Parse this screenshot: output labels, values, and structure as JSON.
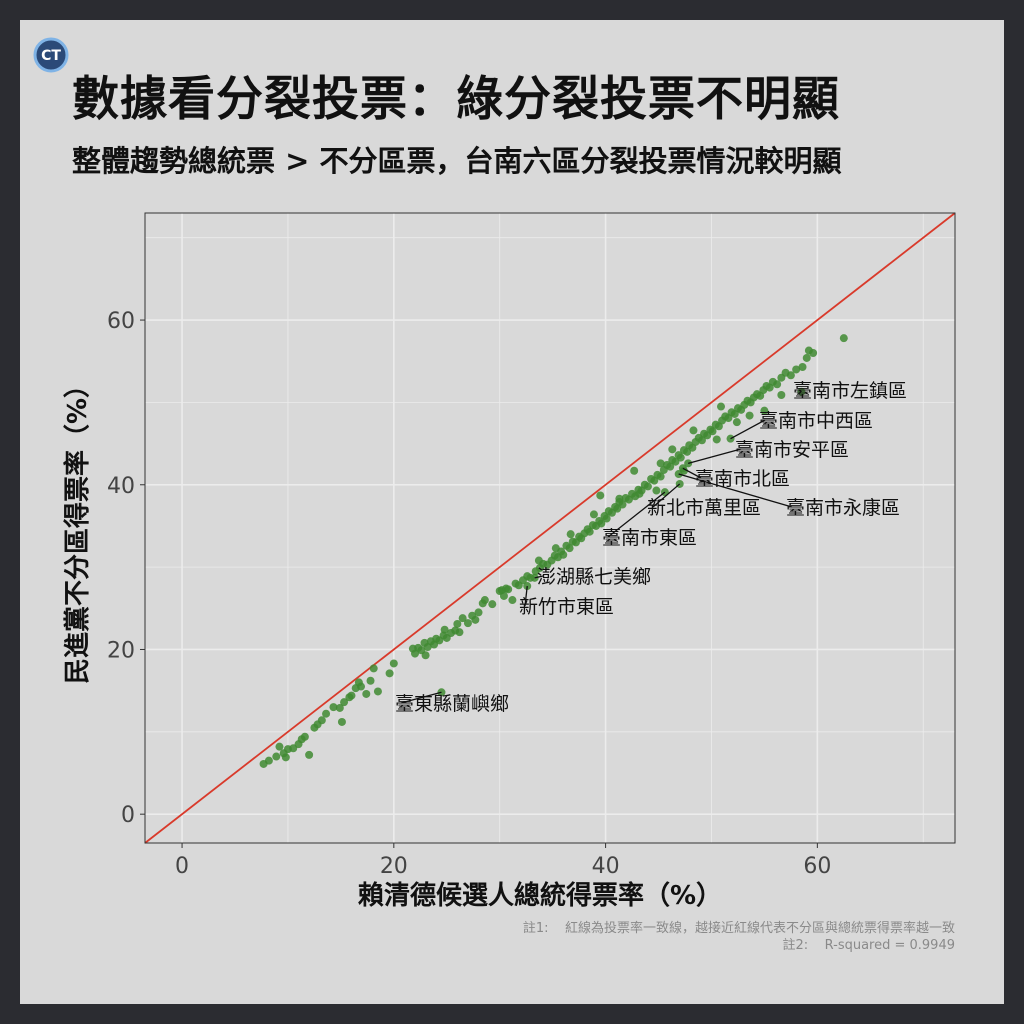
{
  "title": "數據看分裂投票：綠分裂投票不明顯",
  "subtitle": "整體趨勢總統票 > 不分區票，台南六區分裂投票情況較明顯",
  "logo_text": "CT",
  "notes": [
    "註1:    紅線為投票率一致線，越接近紅線代表不分區與總統票得票率越一致",
    "註2:    R-squared = 0.9949"
  ],
  "colors": {
    "background": "#d9d9d9",
    "frame": "#2b2c31",
    "point": "#3f8a31",
    "identity_line": "#d93a2b",
    "grid": "#ececec"
  },
  "chart_data": {
    "type": "scatter",
    "xlabel": "賴清德候選人總統得票率（%）",
    "ylabel": "民進黨不分區得票率（%）",
    "xlim": [
      -3.5,
      73
    ],
    "ylim": [
      -3.5,
      73
    ],
    "x_ticks": [
      0,
      20,
      40,
      60
    ],
    "y_ticks": [
      0,
      20,
      40,
      60
    ],
    "tick_labels_x": [
      "0",
      "20",
      "40",
      "60"
    ],
    "tick_labels_y": [
      "0",
      "20",
      "40",
      "60"
    ],
    "grid": true,
    "reference_line": "y = x",
    "labeled_points": [
      {
        "name": "臺南市左鎮區",
        "x": 58.5,
        "y": 51.3
      },
      {
        "name": "臺南市中西區",
        "x": 51.8,
        "y": 45.6
      },
      {
        "name": "臺南市安平區",
        "x": 47.8,
        "y": 42.6
      },
      {
        "name": "臺南市北區",
        "x": 47.3,
        "y": 42.0
      },
      {
        "name": "臺南市永康區",
        "x": 46.9,
        "y": 41.3
      },
      {
        "name": "新北市萬里區",
        "x": 47.0,
        "y": 40.1
      },
      {
        "name": "臺南市東區",
        "x": 45.6,
        "y": 39.1
      },
      {
        "name": "澎湖縣七美鄉",
        "x": 33.3,
        "y": 28.7
      },
      {
        "name": "新竹市東區",
        "x": 32.6,
        "y": 27.7
      },
      {
        "name": "臺東縣蘭嶼鄉",
        "x": 24.5,
        "y": 14.8
      }
    ],
    "points": [
      [
        7.7,
        6.1
      ],
      [
        8.2,
        6.5
      ],
      [
        8.9,
        7.0
      ],
      [
        9.2,
        8.2
      ],
      [
        9.6,
        7.4
      ],
      [
        9.8,
        6.9
      ],
      [
        10.0,
        7.9
      ],
      [
        10.5,
        8.0
      ],
      [
        11.0,
        8.5
      ],
      [
        11.3,
        9.1
      ],
      [
        11.6,
        9.4
      ],
      [
        12.0,
        7.2
      ],
      [
        12.5,
        10.5
      ],
      [
        12.8,
        10.9
      ],
      [
        13.2,
        11.4
      ],
      [
        14.3,
        13.0
      ],
      [
        14.9,
        12.9
      ],
      [
        15.1,
        11.2
      ],
      [
        15.3,
        13.6
      ],
      [
        15.8,
        14.2
      ],
      [
        16.4,
        15.3
      ],
      [
        16.7,
        16.0
      ],
      [
        16.9,
        15.5
      ],
      [
        17.4,
        14.6
      ],
      [
        17.8,
        16.2
      ],
      [
        18.1,
        17.7
      ],
      [
        18.5,
        14.9
      ],
      [
        20.0,
        18.3
      ],
      [
        22.0,
        19.5
      ],
      [
        22.3,
        20.2
      ],
      [
        22.6,
        19.9
      ],
      [
        22.9,
        20.8
      ],
      [
        23.2,
        20.3
      ],
      [
        23.5,
        21.0
      ],
      [
        23.8,
        20.6
      ],
      [
        24.0,
        21.3
      ],
      [
        24.3,
        21.1
      ],
      [
        24.7,
        21.7
      ],
      [
        25.0,
        21.4
      ],
      [
        25.4,
        22.0
      ],
      [
        25.8,
        22.3
      ],
      [
        26.2,
        22.1
      ],
      [
        26.5,
        23.8
      ],
      [
        27.0,
        23.2
      ],
      [
        27.4,
        24.1
      ],
      [
        27.7,
        23.6
      ],
      [
        28.0,
        24.5
      ],
      [
        28.4,
        25.6
      ],
      [
        29.3,
        25.5
      ],
      [
        30.0,
        27.1
      ],
      [
        30.4,
        26.5
      ],
      [
        30.6,
        27.4
      ],
      [
        30.8,
        27.3
      ],
      [
        31.2,
        26.0
      ],
      [
        31.5,
        28.0
      ],
      [
        31.8,
        27.8
      ],
      [
        32.2,
        28.4
      ],
      [
        32.6,
        28.9
      ],
      [
        32.9,
        28.7
      ],
      [
        33.4,
        29.5
      ],
      [
        33.8,
        29.9
      ],
      [
        34.1,
        30.4
      ],
      [
        34.5,
        30.3
      ],
      [
        34.9,
        30.8
      ],
      [
        35.2,
        31.4
      ],
      [
        35.5,
        31.2
      ],
      [
        35.8,
        31.9
      ],
      [
        36.0,
        31.5
      ],
      [
        36.3,
        32.6
      ],
      [
        36.6,
        32.3
      ],
      [
        36.9,
        33.1
      ],
      [
        37.2,
        33.0
      ],
      [
        37.5,
        33.7
      ],
      [
        37.7,
        33.5
      ],
      [
        38.0,
        34.1
      ],
      [
        38.3,
        34.6
      ],
      [
        38.5,
        34.3
      ],
      [
        38.8,
        35.1
      ],
      [
        39.1,
        35.0
      ],
      [
        39.4,
        35.6
      ],
      [
        39.6,
        35.3
      ],
      [
        39.9,
        36.2
      ],
      [
        40.1,
        35.9
      ],
      [
        40.3,
        36.8
      ],
      [
        40.6,
        36.6
      ],
      [
        40.9,
        37.3
      ],
      [
        41.1,
        37.1
      ],
      [
        41.3,
        37.9
      ],
      [
        41.6,
        37.6
      ],
      [
        41.9,
        38.4
      ],
      [
        42.2,
        38.2
      ],
      [
        42.5,
        38.9
      ],
      [
        42.8,
        38.6
      ],
      [
        43.1,
        39.4
      ],
      [
        43.4,
        39.3
      ],
      [
        43.7,
        40.0
      ],
      [
        44.0,
        39.8
      ],
      [
        44.3,
        40.7
      ],
      [
        44.6,
        40.5
      ],
      [
        44.9,
        41.2
      ],
      [
        45.2,
        41.0
      ],
      [
        45.5,
        41.8
      ],
      [
        45.8,
        42.4
      ],
      [
        46.1,
        42.2
      ],
      [
        46.3,
        43.0
      ],
      [
        46.6,
        42.8
      ],
      [
        46.9,
        43.6
      ],
      [
        47.1,
        43.3
      ],
      [
        47.4,
        44.2
      ],
      [
        47.7,
        44.0
      ],
      [
        47.9,
        44.8
      ],
      [
        48.2,
        44.5
      ],
      [
        48.5,
        45.2
      ],
      [
        48.8,
        45.7
      ],
      [
        49.1,
        45.4
      ],
      [
        49.3,
        46.2
      ],
      [
        49.6,
        46.0
      ],
      [
        49.9,
        46.7
      ],
      [
        50.1,
        46.5
      ],
      [
        50.4,
        47.3
      ],
      [
        50.7,
        47.1
      ],
      [
        51.0,
        47.8
      ],
      [
        51.3,
        48.3
      ],
      [
        51.6,
        48.1
      ],
      [
        51.9,
        48.8
      ],
      [
        52.2,
        48.6
      ],
      [
        52.5,
        49.3
      ],
      [
        52.8,
        49.1
      ],
      [
        53.1,
        49.7
      ],
      [
        53.4,
        50.2
      ],
      [
        53.7,
        50.0
      ],
      [
        54.0,
        50.6
      ],
      [
        54.3,
        51.0
      ],
      [
        54.6,
        50.8
      ],
      [
        54.9,
        51.5
      ],
      [
        55.2,
        52.0
      ],
      [
        55.5,
        51.8
      ],
      [
        55.8,
        52.5
      ],
      [
        56.2,
        52.2
      ],
      [
        56.6,
        53.0
      ],
      [
        57.0,
        53.6
      ],
      [
        57.5,
        53.3
      ],
      [
        58.0,
        54.0
      ],
      [
        58.6,
        54.3
      ],
      [
        59.0,
        55.4
      ],
      [
        59.2,
        56.3
      ],
      [
        59.6,
        56.0
      ],
      [
        62.5,
        57.8
      ],
      [
        39.5,
        38.7
      ],
      [
        41.3,
        38.3
      ],
      [
        42.7,
        41.7
      ],
      [
        43.2,
        38.9
      ],
      [
        44.8,
        39.3
      ],
      [
        46.3,
        44.3
      ],
      [
        48.3,
        46.6
      ],
      [
        50.5,
        45.5
      ],
      [
        52.4,
        47.6
      ],
      [
        55.0,
        49.0
      ],
      [
        56.6,
        50.9
      ],
      [
        50.9,
        49.5
      ],
      [
        53.6,
        48.4
      ],
      [
        47.4,
        41.7
      ],
      [
        45.2,
        42.6
      ],
      [
        36.7,
        34.0
      ],
      [
        35.3,
        32.3
      ],
      [
        33.7,
        30.8
      ],
      [
        38.9,
        36.4
      ],
      [
        30.2,
        27.2
      ],
      [
        28.6,
        26.0
      ],
      [
        26.0,
        23.1
      ],
      [
        24.8,
        22.4
      ],
      [
        23.0,
        19.3
      ],
      [
        21.8,
        20.1
      ],
      [
        19.6,
        17.1
      ],
      [
        16.0,
        14.4
      ],
      [
        13.6,
        12.2
      ]
    ]
  }
}
